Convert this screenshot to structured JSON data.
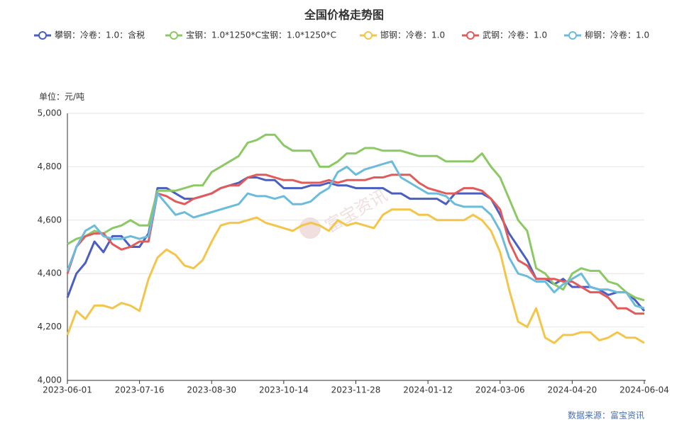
{
  "chart_data": {
    "type": "line",
    "title": "全国价格走势图",
    "y_axis_label": "单位：元/吨",
    "source": "数据来源：富宝资讯",
    "watermark": "富宝资讯",
    "categories": [
      "2023-06-01",
      null,
      null,
      null,
      null,
      null,
      null,
      null,
      "2023-07-16",
      null,
      null,
      null,
      null,
      null,
      null,
      null,
      "2023-08-30",
      null,
      null,
      null,
      null,
      null,
      null,
      null,
      "2023-10-14",
      null,
      null,
      null,
      null,
      null,
      null,
      null,
      "2023-11-28",
      null,
      null,
      null,
      null,
      null,
      null,
      null,
      "2024-01-12",
      null,
      null,
      null,
      null,
      null,
      null,
      null,
      "2024-03-06",
      null,
      null,
      null,
      null,
      null,
      null,
      null,
      "2024-04-20",
      null,
      null,
      null,
      null,
      null,
      null,
      null,
      "2024-06-04"
    ],
    "ylim": [
      4000,
      5000
    ],
    "yticks": [
      {
        "value": 4000,
        "label": "4,000"
      },
      {
        "value": 4200,
        "label": "4,200"
      },
      {
        "value": 4400,
        "label": "4,400"
      },
      {
        "value": 4600,
        "label": "4,600"
      },
      {
        "value": 4800,
        "label": "4,800"
      },
      {
        "value": 5000,
        "label": "5,000"
      }
    ],
    "grid": true,
    "legend": "top",
    "series": [
      {
        "name": "攀钢：冷卷：1.0：含税",
        "color": "#4a5fc1",
        "values": [
          4310,
          4400,
          4440,
          4520,
          4480,
          4540,
          4540,
          4500,
          4500,
          4550,
          4720,
          4720,
          4700,
          4680,
          4680,
          4690,
          4700,
          4720,
          4730,
          4740,
          4760,
          4760,
          4750,
          4750,
          4720,
          4720,
          4720,
          4730,
          4730,
          4740,
          4730,
          4730,
          4720,
          4720,
          4720,
          4720,
          4700,
          4700,
          4680,
          4680,
          4680,
          4680,
          4660,
          4700,
          4700,
          4700,
          4700,
          4680,
          4620,
          4550,
          4500,
          4450,
          4380,
          4380,
          4360,
          4380,
          4350,
          4350,
          4350,
          4340,
          4320,
          4330,
          4330,
          4300,
          4260
        ]
      },
      {
        "name": "宝钢：1.0*1250*C宝钢：1.0*1250*C",
        "color": "#8cc965",
        "values": [
          4510,
          4530,
          4540,
          4560,
          4550,
          4570,
          4580,
          4600,
          4580,
          4580,
          4710,
          4710,
          4710,
          4720,
          4730,
          4730,
          4780,
          4800,
          4820,
          4840,
          4890,
          4900,
          4920,
          4920,
          4880,
          4860,
          4860,
          4860,
          4800,
          4800,
          4820,
          4850,
          4850,
          4870,
          4870,
          4860,
          4860,
          4860,
          4850,
          4840,
          4840,
          4840,
          4820,
          4820,
          4820,
          4820,
          4850,
          4800,
          4760,
          4680,
          4600,
          4560,
          4420,
          4400,
          4360,
          4340,
          4400,
          4420,
          4410,
          4410,
          4370,
          4360,
          4330,
          4310,
          4300
        ]
      },
      {
        "name": "邯钢：冷卷：1.0",
        "color": "#f4c54b",
        "values": [
          4170,
          4260,
          4230,
          4280,
          4280,
          4270,
          4290,
          4280,
          4260,
          4380,
          4460,
          4490,
          4470,
          4430,
          4420,
          4450,
          4520,
          4580,
          4590,
          4590,
          4600,
          4610,
          4590,
          4580,
          4570,
          4560,
          4580,
          4590,
          4580,
          4560,
          4600,
          4580,
          4590,
          4580,
          4570,
          4620,
          4640,
          4640,
          4640,
          4620,
          4620,
          4600,
          4600,
          4600,
          4600,
          4620,
          4600,
          4560,
          4480,
          4340,
          4220,
          4200,
          4270,
          4160,
          4140,
          4170,
          4170,
          4180,
          4180,
          4150,
          4160,
          4180,
          4160,
          4160,
          4140
        ]
      },
      {
        "name": "武钢：冷卷：1.0",
        "color": "#e35a5a",
        "values": [
          4400,
          4500,
          4540,
          4550,
          4550,
          4510,
          4490,
          4500,
          4520,
          4520,
          4700,
          4690,
          4670,
          4660,
          4680,
          4690,
          4700,
          4720,
          4730,
          4730,
          4760,
          4770,
          4770,
          4760,
          4750,
          4750,
          4740,
          4740,
          4740,
          4750,
          4740,
          4750,
          4750,
          4750,
          4760,
          4760,
          4770,
          4770,
          4770,
          4740,
          4720,
          4710,
          4700,
          4700,
          4720,
          4720,
          4710,
          4680,
          4640,
          4520,
          4450,
          4430,
          4380,
          4380,
          4380,
          4370,
          4370,
          4350,
          4330,
          4330,
          4310,
          4270,
          4270,
          4250,
          4250
        ]
      },
      {
        "name": "柳钢：冷卷：1.0",
        "color": "#6bbcdc",
        "values": [
          4410,
          4500,
          4560,
          4580,
          4540,
          4530,
          4530,
          4540,
          4530,
          4540,
          4700,
          4660,
          4620,
          4630,
          4610,
          4620,
          4630,
          4640,
          4650,
          4660,
          4700,
          4690,
          4690,
          4680,
          4690,
          4660,
          4660,
          4670,
          4700,
          4720,
          4780,
          4800,
          4770,
          4790,
          4800,
          4810,
          4820,
          4760,
          4740,
          4720,
          4700,
          4700,
          4690,
          4660,
          4650,
          4650,
          4650,
          4620,
          4560,
          4460,
          4400,
          4390,
          4370,
          4370,
          4330,
          4360,
          4380,
          4400,
          4350,
          4340,
          4340,
          4330,
          4330,
          4280,
          4270
        ]
      }
    ]
  }
}
